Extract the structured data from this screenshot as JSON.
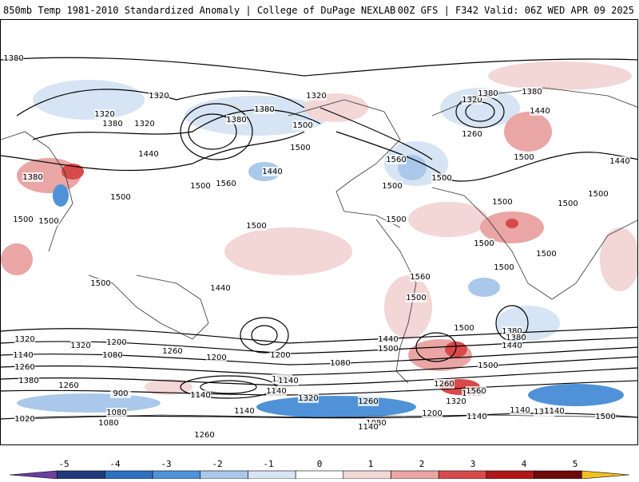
{
  "header": {
    "title_left": "850mb Temp 1981-2010 Standardized Anomaly | College of DuPage NEXLAB",
    "title_right": "00Z GFS | F342 Valid: 06Z WED APR 09 2025"
  },
  "map": {
    "contour_labels": [
      "1380",
      "1320",
      "1320",
      "1380",
      "1440",
      "1440",
      "1380",
      "1500",
      "1500",
      "1560",
      "1380",
      "1320",
      "1500",
      "1320",
      "1320",
      "1380",
      "1440",
      "1500",
      "1560",
      "1500",
      "1380",
      "1260",
      "1440",
      "1380",
      "1500",
      "1500",
      "1500",
      "1500",
      "1500",
      "1500",
      "1500",
      "1500",
      "1500",
      "1500",
      "1500",
      "1500",
      "1500",
      "1500",
      "1560",
      "1500",
      "1440",
      "1440",
      "1500",
      "1380",
      "1380",
      "1320",
      "1320",
      "1200",
      "1080",
      "1260",
      "1140",
      "1260",
      "1380",
      "1200",
      "1140",
      "1020",
      "1080",
      "1080",
      "1260",
      "900",
      "1200",
      "1200",
      "1140",
      "1080",
      "1140",
      "1140",
      "1320",
      "1260",
      "1080",
      "1140",
      "1260",
      "1320",
      "1380",
      "1140",
      "1500",
      "1500",
      "1440",
      "1500",
      "1560",
      "1320",
      "1260",
      "1200",
      "1140",
      "1140"
    ],
    "colors": {
      "anom_pos_1": "#f3d6d6",
      "anom_pos_2": "#eaa5a5",
      "anom_pos_3": "#d84a4a",
      "anom_neg_1": "#d6e4f3",
      "anom_neg_2": "#a9c8ea",
      "anom_neg_3": "#4f92d8",
      "coast": "#333333",
      "contour": "#000000"
    }
  },
  "colorbar": {
    "labels": [
      "-5",
      "-4",
      "-3",
      "-2",
      "-1",
      "0",
      "1",
      "2",
      "3",
      "4",
      "5"
    ],
    "colors": [
      "#6b3fa0",
      "#1f3a7a",
      "#2f6fc0",
      "#4f92d8",
      "#a9c8ea",
      "#d6e4f3",
      "#ffffff",
      "#f3d6d6",
      "#eaa5a5",
      "#d84a4a",
      "#b01818",
      "#6e0a0a",
      "#f0c020"
    ]
  }
}
